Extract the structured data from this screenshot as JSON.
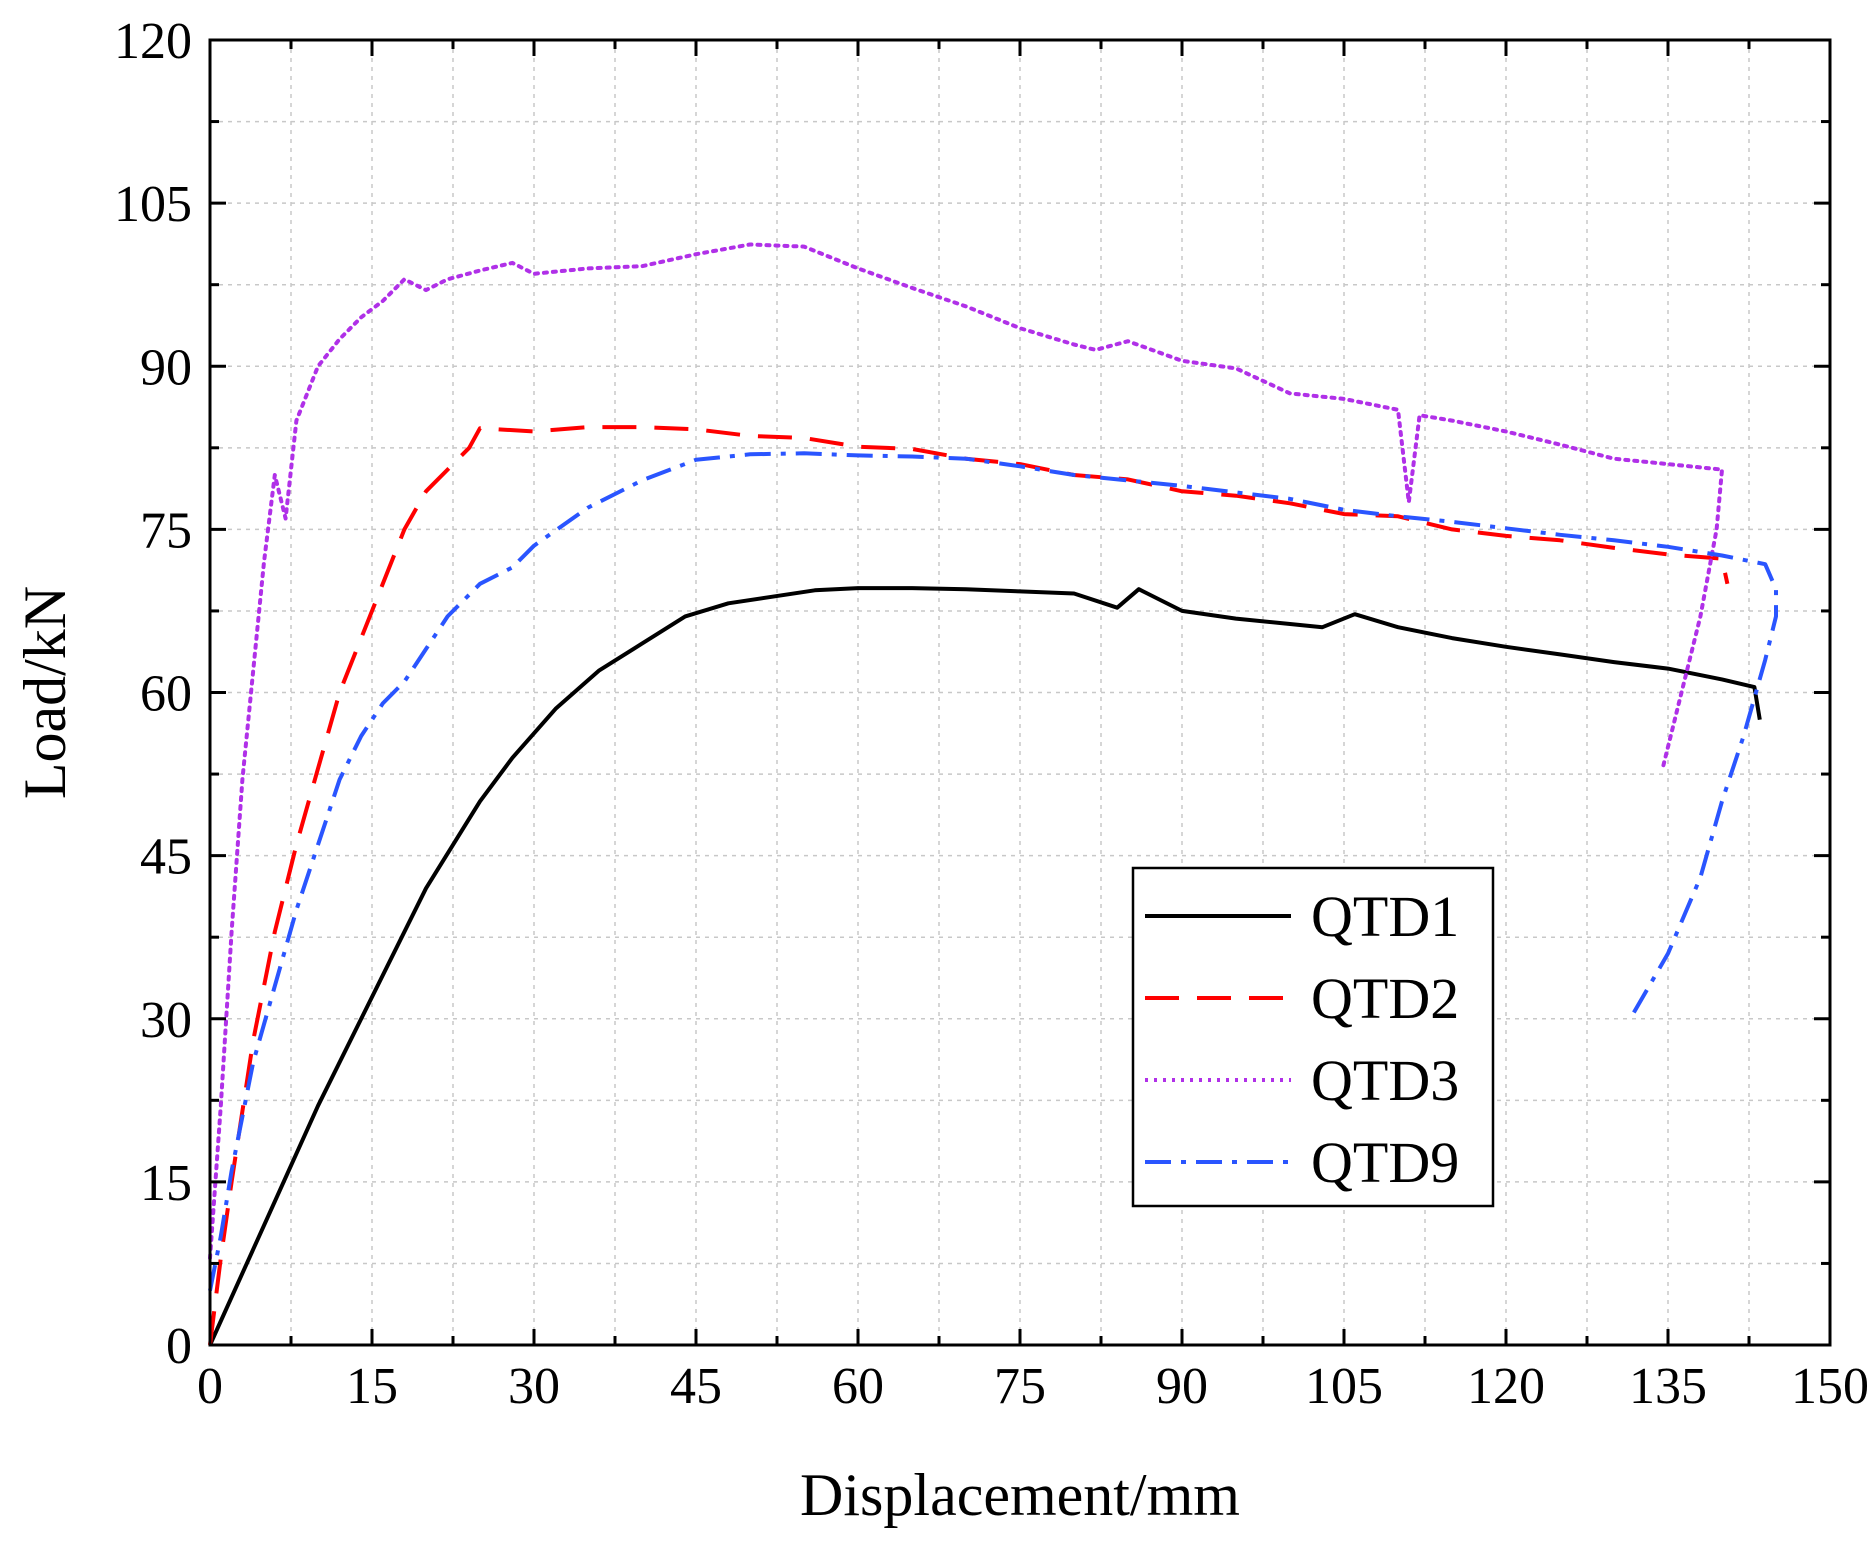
{
  "chart_data": {
    "type": "line",
    "title": "",
    "xlabel": "Displacement/mm",
    "ylabel": "Load/kN",
    "xlim": [
      0,
      150
    ],
    "ylim": [
      0,
      120
    ],
    "xticks": [
      0,
      15,
      30,
      45,
      60,
      75,
      90,
      105,
      120,
      135,
      150
    ],
    "yticks": [
      0,
      15,
      30,
      45,
      60,
      75,
      90,
      105,
      120
    ],
    "x_tick_labels": [
      "0",
      "15",
      "30",
      "45",
      "60",
      "75",
      "90",
      "105",
      "120",
      "135",
      "150"
    ],
    "y_tick_labels": [
      "0",
      "15",
      "30",
      "45",
      "60",
      "75",
      "90",
      "105",
      "120"
    ],
    "grid": true,
    "legend_position": "bottom-right",
    "series": [
      {
        "name": "QTD1",
        "color": "#000000",
        "style": "solid",
        "points": [
          [
            0,
            0
          ],
          [
            5,
            11
          ],
          [
            10,
            22
          ],
          [
            15,
            32
          ],
          [
            20,
            42
          ],
          [
            25,
            50
          ],
          [
            28,
            54
          ],
          [
            32,
            58.5
          ],
          [
            36,
            62
          ],
          [
            40,
            64.5
          ],
          [
            44,
            67
          ],
          [
            48,
            68.2
          ],
          [
            52,
            68.8
          ],
          [
            56,
            69.4
          ],
          [
            60,
            69.6
          ],
          [
            65,
            69.6
          ],
          [
            70,
            69.5
          ],
          [
            75,
            69.3
          ],
          [
            80,
            69.1
          ],
          [
            84,
            67.8
          ],
          [
            86,
            69.5
          ],
          [
            90,
            67.5
          ],
          [
            95,
            66.8
          ],
          [
            100,
            66.3
          ],
          [
            103,
            66
          ],
          [
            106,
            67.2
          ],
          [
            110,
            66
          ],
          [
            115,
            65
          ],
          [
            120,
            64.2
          ],
          [
            125,
            63.5
          ],
          [
            130,
            62.8
          ],
          [
            135,
            62.2
          ],
          [
            140,
            61.2
          ],
          [
            143,
            60.5
          ],
          [
            143.5,
            57.5
          ]
        ]
      },
      {
        "name": "QTD2",
        "color": "#ff0000",
        "style": "dashed",
        "points": [
          [
            0,
            0
          ],
          [
            1,
            8
          ],
          [
            2,
            15
          ],
          [
            4,
            28
          ],
          [
            6,
            38
          ],
          [
            8,
            46
          ],
          [
            10,
            53
          ],
          [
            12,
            60
          ],
          [
            14,
            65
          ],
          [
            16,
            70
          ],
          [
            18,
            75
          ],
          [
            20,
            78.5
          ],
          [
            22,
            80.5
          ],
          [
            24,
            82.5
          ],
          [
            25,
            84.3
          ],
          [
            30,
            84
          ],
          [
            35,
            84.4
          ],
          [
            40,
            84.4
          ],
          [
            45,
            84.2
          ],
          [
            50,
            83.6
          ],
          [
            55,
            83.4
          ],
          [
            60,
            82.6
          ],
          [
            65,
            82.4
          ],
          [
            70,
            81.5
          ],
          [
            75,
            81
          ],
          [
            80,
            80
          ],
          [
            85,
            79.6
          ],
          [
            90,
            78.5
          ],
          [
            95,
            78.1
          ],
          [
            100,
            77.4
          ],
          [
            105,
            76.4
          ],
          [
            110,
            76.2
          ],
          [
            115,
            75
          ],
          [
            120,
            74.4
          ],
          [
            125,
            74
          ],
          [
            130,
            73.3
          ],
          [
            135,
            72.7
          ],
          [
            140,
            72.3
          ],
          [
            140.5,
            70
          ]
        ]
      },
      {
        "name": "QTD3",
        "color": "#b030e8",
        "style": "dotted",
        "points": [
          [
            0,
            8
          ],
          [
            0.5,
            15
          ],
          [
            1,
            22
          ],
          [
            2,
            38
          ],
          [
            3,
            52
          ],
          [
            4,
            62
          ],
          [
            5,
            72
          ],
          [
            6,
            80
          ],
          [
            7,
            76
          ],
          [
            8,
            85
          ],
          [
            10,
            90
          ],
          [
            12,
            92.5
          ],
          [
            14,
            94.5
          ],
          [
            16,
            96
          ],
          [
            18,
            98
          ],
          [
            20,
            97
          ],
          [
            22,
            98
          ],
          [
            25,
            98.8
          ],
          [
            28,
            99.5
          ],
          [
            30,
            98.5
          ],
          [
            35,
            99
          ],
          [
            40,
            99.2
          ],
          [
            45,
            100.3
          ],
          [
            50,
            101.2
          ],
          [
            55,
            101
          ],
          [
            60,
            99
          ],
          [
            65,
            97.2
          ],
          [
            70,
            95.5
          ],
          [
            75,
            93.5
          ],
          [
            80,
            92
          ],
          [
            82,
            91.5
          ],
          [
            85,
            92.3
          ],
          [
            90,
            90.5
          ],
          [
            95,
            89.8
          ],
          [
            100,
            87.5
          ],
          [
            105,
            87
          ],
          [
            110,
            86
          ],
          [
            111,
            77.5
          ],
          [
            112,
            85.5
          ],
          [
            115,
            85
          ],
          [
            120,
            84
          ],
          [
            125,
            82.8
          ],
          [
            130,
            81.5
          ],
          [
            135,
            81
          ],
          [
            140,
            80.5
          ],
          [
            139.5,
            75
          ],
          [
            138,
            67
          ],
          [
            136,
            59
          ],
          [
            134.5,
            53
          ]
        ]
      },
      {
        "name": "QTD9",
        "color": "#2a55ff",
        "style": "dashdot",
        "points": [
          [
            0,
            5
          ],
          [
            1,
            10
          ],
          [
            2,
            16
          ],
          [
            3,
            21
          ],
          [
            4,
            26
          ],
          [
            6,
            33
          ],
          [
            8,
            40
          ],
          [
            10,
            46
          ],
          [
            12,
            52
          ],
          [
            14,
            56
          ],
          [
            16,
            59
          ],
          [
            18,
            61
          ],
          [
            20,
            64
          ],
          [
            22,
            67
          ],
          [
            25,
            70
          ],
          [
            28,
            71.5
          ],
          [
            30,
            73.5
          ],
          [
            35,
            77
          ],
          [
            40,
            79.5
          ],
          [
            45,
            81.4
          ],
          [
            50,
            81.9
          ],
          [
            55,
            82
          ],
          [
            60,
            81.8
          ],
          [
            65,
            81.7
          ],
          [
            70,
            81.5
          ],
          [
            75,
            80.8
          ],
          [
            80,
            80
          ],
          [
            85,
            79.5
          ],
          [
            90,
            79
          ],
          [
            95,
            78.4
          ],
          [
            100,
            77.8
          ],
          [
            105,
            76.8
          ],
          [
            110,
            76.2
          ],
          [
            115,
            75.7
          ],
          [
            120,
            75.1
          ],
          [
            125,
            74.5
          ],
          [
            130,
            74
          ],
          [
            135,
            73.4
          ],
          [
            140,
            72.6
          ],
          [
            144,
            71.8
          ],
          [
            145,
            69.5
          ],
          [
            145,
            67
          ],
          [
            144,
            63
          ],
          [
            142,
            56
          ],
          [
            140,
            50
          ],
          [
            138,
            43
          ],
          [
            135,
            36
          ],
          [
            131.5,
            30
          ]
        ]
      }
    ]
  }
}
